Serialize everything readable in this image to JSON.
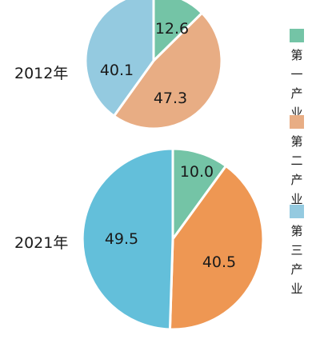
{
  "chart_data": {
    "type": "pie",
    "legend_position": "right",
    "series": [
      {
        "name": "第一产业",
        "color": "#74c4a6"
      },
      {
        "name": "第二产业",
        "color": "#e8ad84"
      },
      {
        "name": "第三产业",
        "color": "#94cae0"
      }
    ],
    "charts": [
      {
        "year_label": "2012年",
        "slices": [
          {
            "series": "第一产业",
            "value": 12.6,
            "label": "12.6",
            "color": "#74c4a6"
          },
          {
            "series": "第二产业",
            "value": 47.3,
            "label": "47.3",
            "color": "#e8ad84"
          },
          {
            "series": "第三产业",
            "value": 40.1,
            "label": "40.1",
            "color": "#94cae0"
          }
        ]
      },
      {
        "year_label": "2021年",
        "slices": [
          {
            "series": "第一产业",
            "value": 10.0,
            "label": "10.0",
            "color": "#74c4a6"
          },
          {
            "series": "第二产业",
            "value": 40.5,
            "label": "40.5",
            "color": "#ee9753"
          },
          {
            "series": "第三产业",
            "value": 49.5,
            "label": "49.5",
            "color": "#63bfda"
          }
        ]
      }
    ]
  }
}
